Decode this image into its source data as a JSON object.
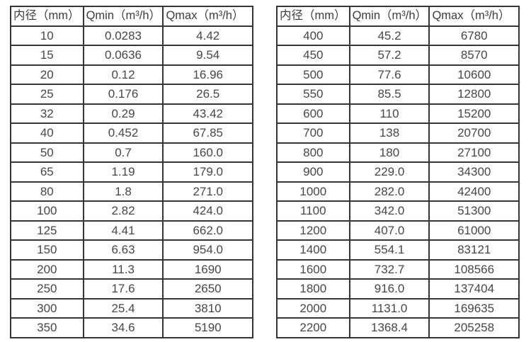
{
  "page": {
    "background_color": "#ffffff",
    "border_color": "#363636",
    "text_color": "#474747"
  },
  "tables": [
    {
      "name": "flow-table-small-diameters",
      "headers": [
        "内径（mm）",
        "Qmin（m³/h）",
        "Qmax（m³/h）"
      ],
      "rows": [
        [
          "10",
          "0.0283",
          "4.42"
        ],
        [
          "15",
          "0.0636",
          "9.54"
        ],
        [
          "20",
          "0.12",
          "16.96"
        ],
        [
          "25",
          "0.176",
          "26.5"
        ],
        [
          "32",
          "0.29",
          "43.42"
        ],
        [
          "40",
          "0.452",
          "67.85"
        ],
        [
          "50",
          "0.7",
          "160.0"
        ],
        [
          "65",
          "1.19",
          "179.0"
        ],
        [
          "80",
          "1.8",
          "271.0"
        ],
        [
          "100",
          "2.82",
          "424.0"
        ],
        [
          "125",
          "4.41",
          "662.0"
        ],
        [
          "150",
          "6.63",
          "954.0"
        ],
        [
          "200",
          "11.3",
          "1690"
        ],
        [
          "250",
          "17.6",
          "2650"
        ],
        [
          "300",
          "25.4",
          "3810"
        ],
        [
          "350",
          "34.6",
          "5190"
        ]
      ]
    },
    {
      "name": "flow-table-large-diameters",
      "headers": [
        "内径（mm）",
        "Qmin（m³/h）",
        "Qmax（m³/h）"
      ],
      "rows": [
        [
          "400",
          "45.2",
          "6780"
        ],
        [
          "450",
          "57.2",
          "8570"
        ],
        [
          "500",
          "77.6",
          "10600"
        ],
        [
          "550",
          "85.5",
          "12800"
        ],
        [
          "600",
          "110",
          "15200"
        ],
        [
          "700",
          "138",
          "20700"
        ],
        [
          "800",
          "180",
          "27100"
        ],
        [
          "900",
          "229.0",
          "34300"
        ],
        [
          "1000",
          "282.0",
          "42400"
        ],
        [
          "1100",
          "342.0",
          "51300"
        ],
        [
          "1200",
          "407.0",
          "61000"
        ],
        [
          "1400",
          "554.1",
          "83121"
        ],
        [
          "1600",
          "732.7",
          "108566"
        ],
        [
          "1800",
          "916.0",
          "137404"
        ],
        [
          "2000",
          "1131.0",
          "169635"
        ],
        [
          "2200",
          "1368.4",
          "205258"
        ]
      ]
    }
  ]
}
